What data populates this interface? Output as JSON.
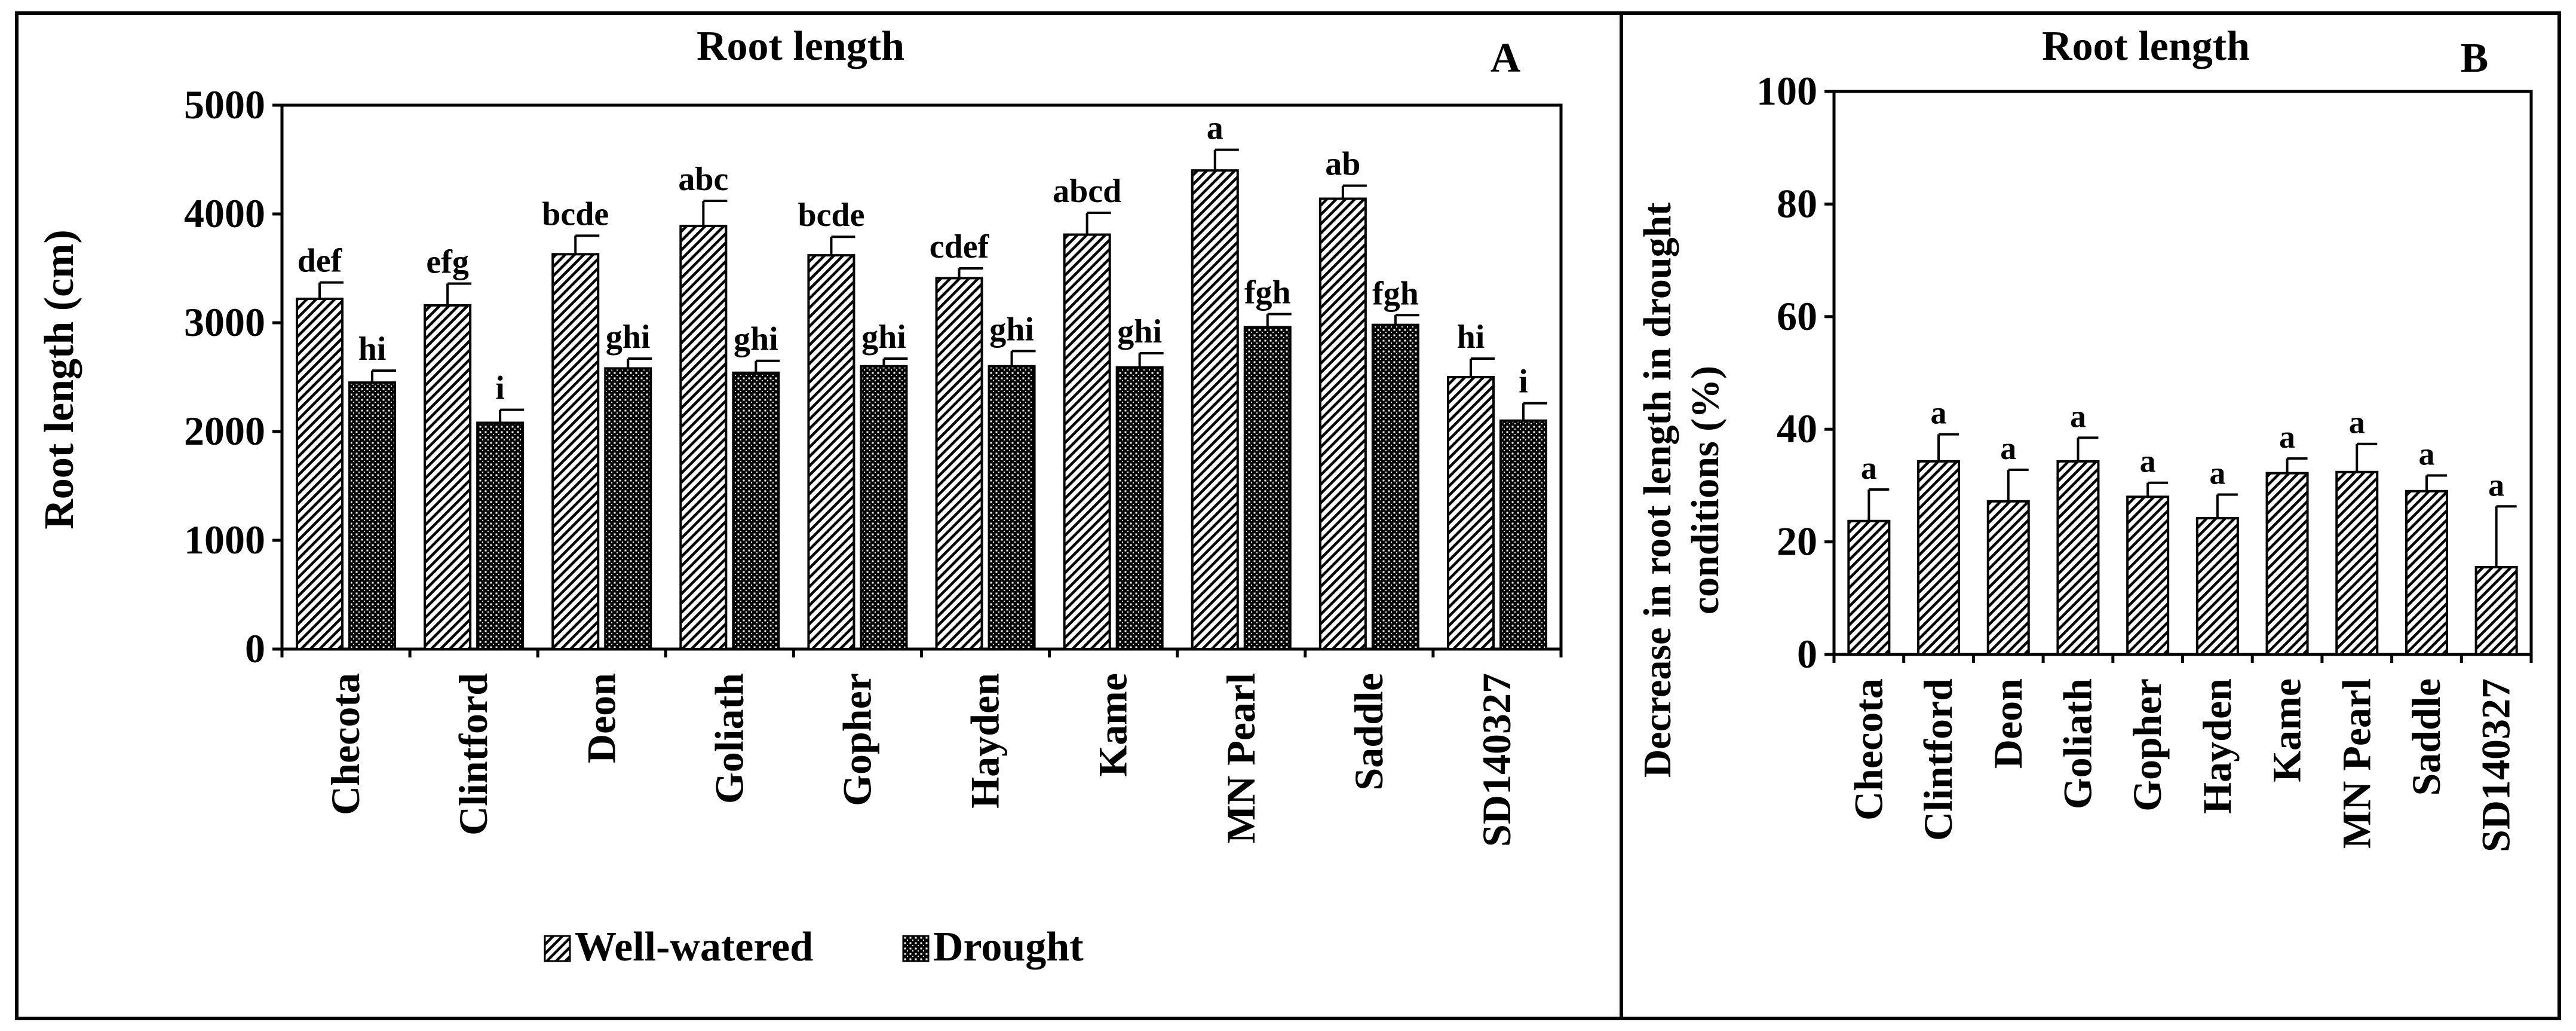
{
  "chart_data": [
    {
      "type": "bar",
      "panel_letter": "A",
      "title": "Root length",
      "xlabel": "",
      "ylabel": "Root length (cm)",
      "ylim": [
        0,
        5000
      ],
      "yticks": [
        0,
        1000,
        2000,
        3000,
        4000,
        5000
      ],
      "categories": [
        "Checota",
        "Clintford",
        "Deon",
        "Goliath",
        "Gopher",
        "Hayden",
        "Kame",
        "MN Pearl",
        "Saddle",
        "SD140327"
      ],
      "legend_position": "bottom-center",
      "series": [
        {
          "name": "Well-watered",
          "pattern": "diagonal-hatch",
          "values": [
            3220,
            3160,
            3630,
            3890,
            3620,
            3410,
            3810,
            4400,
            4140,
            2500
          ],
          "errors": [
            150,
            200,
            170,
            230,
            170,
            90,
            200,
            190,
            120,
            170
          ],
          "letters": [
            "def",
            "efg",
            "bcde",
            "abc",
            "bcde",
            "cdef",
            "abcd",
            "a",
            "ab",
            "hi"
          ]
        },
        {
          "name": "Drought",
          "pattern": "crosshatch",
          "values": [
            2450,
            2080,
            2580,
            2540,
            2600,
            2600,
            2590,
            2960,
            2980,
            2100
          ],
          "errors": [
            110,
            120,
            90,
            110,
            70,
            140,
            130,
            120,
            90,
            160
          ],
          "letters": [
            "hi",
            "i",
            "ghi",
            "ghi",
            "ghi",
            "ghi",
            "ghi",
            "fgh",
            "fgh",
            "i"
          ]
        }
      ]
    },
    {
      "type": "bar",
      "panel_letter": "B",
      "title": "Root length",
      "xlabel": "",
      "ylabel": "Decrease in root length in drought conditions (%)",
      "ylabel_lines": [
        "Decrease in root length in drought",
        "conditions (%)"
      ],
      "ylim": [
        0,
        100
      ],
      "yticks": [
        0,
        20,
        40,
        60,
        80,
        100
      ],
      "categories": [
        "Checota",
        "Clintford",
        "Deon",
        "Goliath",
        "Gopher",
        "Hayden",
        "Kame",
        "MN Pearl",
        "Saddle",
        "SD140327"
      ],
      "series": [
        {
          "name": "Decrease",
          "pattern": "diagonal-hatch",
          "values": [
            23.7,
            34.3,
            27.2,
            34.3,
            28.0,
            24.2,
            32.2,
            32.4,
            29.0,
            15.5
          ],
          "errors": [
            5.6,
            4.8,
            5.6,
            4.2,
            2.5,
            4.2,
            2.6,
            5.0,
            2.8,
            10.8
          ],
          "letters": [
            "a",
            "a",
            "a",
            "a",
            "a",
            "a",
            "a",
            "a",
            "a",
            "a"
          ]
        }
      ]
    }
  ]
}
